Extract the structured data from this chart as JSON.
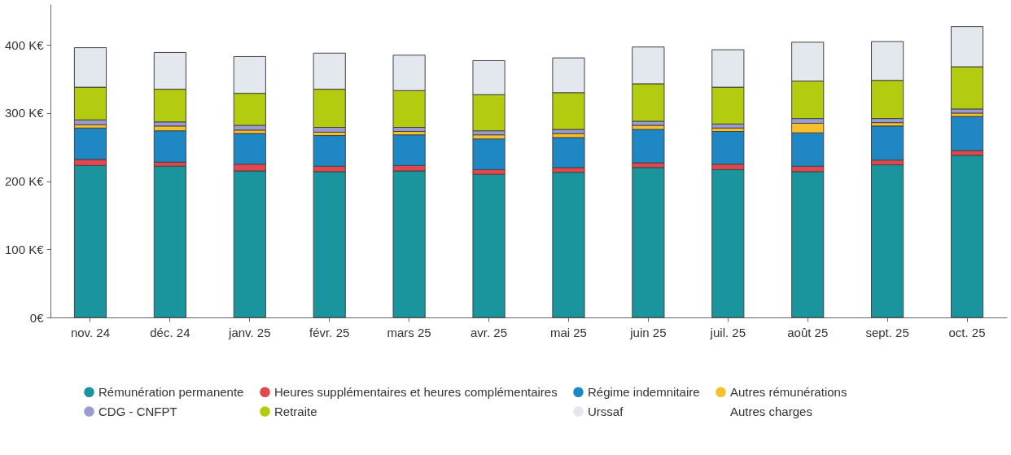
{
  "chart_data": {
    "type": "bar",
    "stacked": true,
    "categories": [
      "nov. 24",
      "déc. 24",
      "janv. 25",
      "févr. 25",
      "mars 25",
      "avr. 25",
      "mai 25",
      "juin 25",
      "juil. 25",
      "août 25",
      "sept. 25",
      "oct. 25"
    ],
    "ylim": [
      0,
      460
    ],
    "yticks": [
      {
        "value": 0,
        "label": "0€"
      },
      {
        "value": 100,
        "label": "100 K€"
      },
      {
        "value": 200,
        "label": "200 K€"
      },
      {
        "value": 300,
        "label": "300 K€"
      },
      {
        "value": 400,
        "label": "400 K€"
      }
    ],
    "grid": false,
    "legend": "bottom",
    "series": [
      {
        "name": "Rémunération permanente",
        "color": "#1a959e",
        "values": [
          223,
          222,
          215,
          214,
          215,
          210,
          213,
          220,
          217,
          214,
          224,
          238
        ]
      },
      {
        "name": "Heures supplémentaires et heures complémentaires",
        "color": "#e0474f",
        "values": [
          9,
          6,
          10,
          8,
          8,
          7,
          7,
          7,
          8,
          8,
          7,
          7
        ]
      },
      {
        "name": "Régime indemnitaire",
        "color": "#1f87c4",
        "values": [
          46,
          46,
          45,
          45,
          45,
          45,
          44,
          49,
          48,
          49,
          50,
          50
        ]
      },
      {
        "name": "Autres rémunérations",
        "color": "#f5c02a",
        "values": [
          5,
          7,
          5,
          5,
          5,
          6,
          6,
          6,
          5,
          14,
          5,
          5
        ]
      },
      {
        "name": "CDG - CNFPT",
        "color": "#9a9cd0",
        "values": [
          7,
          6,
          7,
          7,
          6,
          6,
          6,
          6,
          6,
          7,
          6,
          6
        ]
      },
      {
        "name": "Retraite",
        "color": "#b4cc10",
        "values": [
          48,
          48,
          47,
          56,
          54,
          53,
          54,
          55,
          54,
          55,
          56,
          62
        ]
      },
      {
        "name": "Urssaf",
        "color": "#e2e8ed",
        "values": [
          58,
          54,
          54,
          53,
          52,
          50,
          51,
          54,
          55,
          57,
          57,
          59
        ]
      },
      {
        "name": "Autres charges",
        "values": [
          null,
          null,
          null,
          null,
          null,
          null,
          null,
          null,
          null,
          null,
          null,
          null
        ]
      }
    ]
  }
}
